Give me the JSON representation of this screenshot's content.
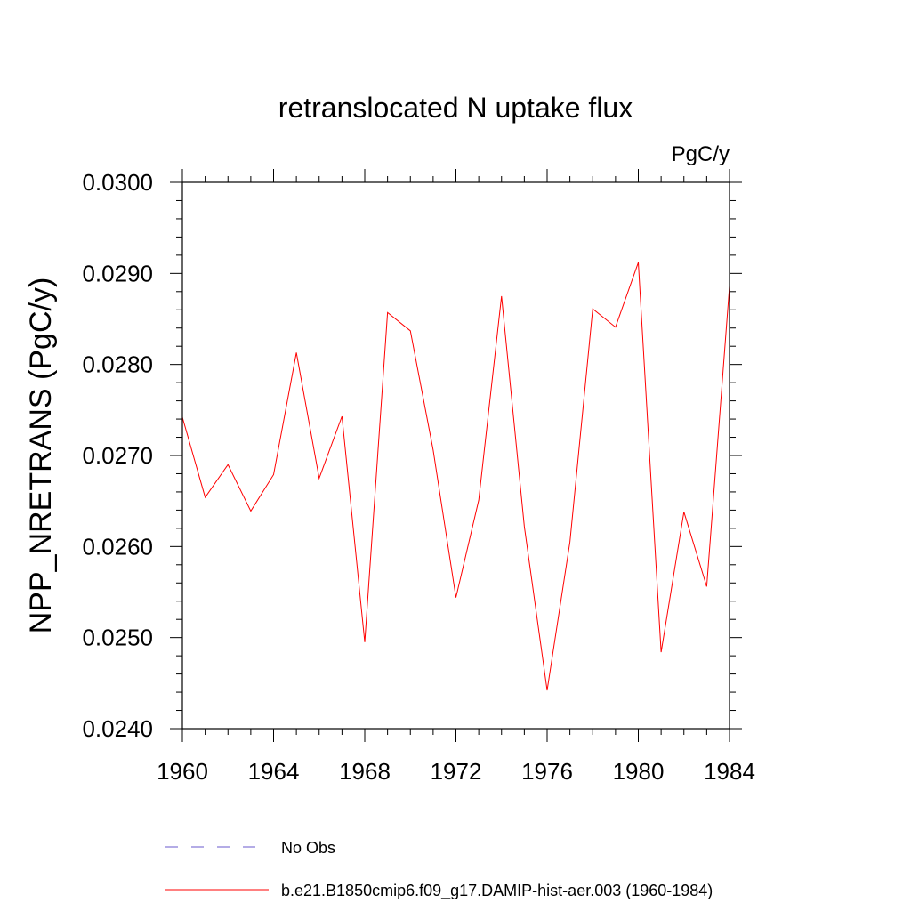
{
  "chart_data": {
    "type": "line",
    "title": "retranslocated N uptake flux",
    "units": "PgC/y",
    "ylabel": "NPP_NRETRANS  (PgC/y)",
    "xlabel": "",
    "xlim": [
      1960,
      1984
    ],
    "ylim": [
      0.024,
      0.03
    ],
    "xticks": [
      "1960",
      "1964",
      "1968",
      "1972",
      "1976",
      "1980",
      "1984"
    ],
    "yticks": [
      "0.0240",
      "0.0250",
      "0.0260",
      "0.0270",
      "0.0280",
      "0.0290",
      "0.0300"
    ],
    "x": [
      1960,
      1961,
      1962,
      1963,
      1964,
      1965,
      1966,
      1967,
      1968,
      1969,
      1970,
      1971,
      1972,
      1973,
      1974,
      1975,
      1976,
      1977,
      1978,
      1979,
      1980,
      1981,
      1982,
      1983,
      1984
    ],
    "series": [
      {
        "name": "b.e21.B1850cmip6.f09_g17.DAMIP-hist-aer.003 (1960-1984)",
        "color": "#ff0000",
        "style": "solid",
        "values": [
          0.02742,
          0.02654,
          0.0269,
          0.02639,
          0.02679,
          0.02813,
          0.02675,
          0.02743,
          0.02495,
          0.02857,
          0.02837,
          0.02706,
          0.02544,
          0.02651,
          0.02875,
          0.02622,
          0.02442,
          0.02605,
          0.02861,
          0.02841,
          0.02912,
          0.02484,
          0.02638,
          0.02556,
          0.02886
        ]
      }
    ],
    "legend": [
      {
        "label": "No Obs",
        "color": "#6a5acd",
        "style": "dashed"
      },
      {
        "label": "b.e21.B1850cmip6.f09_g17.DAMIP-hist-aer.003 (1960-1984)",
        "color": "#ff0000",
        "style": "solid"
      }
    ],
    "legend_position": "bottom",
    "grid": false
  }
}
